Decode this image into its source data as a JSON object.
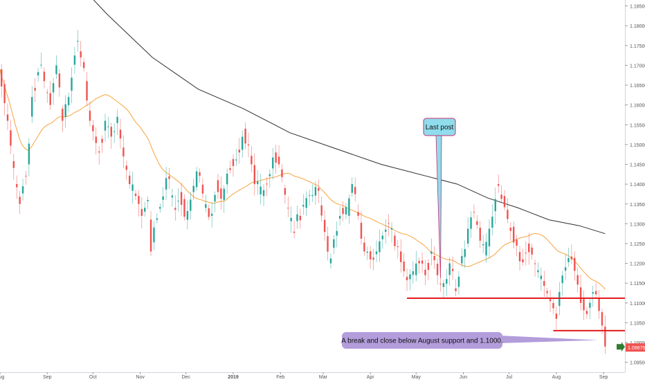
{
  "chart_data": {
    "type": "candlestick",
    "instrument_axis": "price",
    "ylim": [
      1.0925,
      1.1865
    ],
    "y_ticks": [
      "1.18500",
      "1.18000",
      "1.17500",
      "1.17000",
      "1.16500",
      "1.16000",
      "1.15500",
      "1.15000",
      "1.14500",
      "1.14000",
      "1.13500",
      "1.13000",
      "1.12500",
      "1.12000",
      "1.11500",
      "1.11000",
      "1.10500",
      "1.10000",
      "1.09500"
    ],
    "x_ticks": [
      {
        "label": "Aug",
        "day": 0
      },
      {
        "label": "Sep",
        "day": 31
      },
      {
        "label": "Oct",
        "day": 61
      },
      {
        "label": "Nov",
        "day": 92
      },
      {
        "label": "Dec",
        "day": 122
      },
      {
        "label": "2019",
        "day": 153
      },
      {
        "label": "Feb",
        "day": 184
      },
      {
        "label": "Mar",
        "day": 212
      },
      {
        "label": "Apr",
        "day": 243
      },
      {
        "label": "May",
        "day": 273
      },
      {
        "label": "Jun",
        "day": 304
      },
      {
        "label": "Jul",
        "day": 334
      },
      {
        "label": "Aug",
        "day": 365
      },
      {
        "label": "Sep",
        "day": 396
      }
    ],
    "x_range_days": [
      0,
      410
    ],
    "close_anchors": [
      [
        0,
        1.169
      ],
      [
        5,
        1.156
      ],
      [
        10,
        1.14
      ],
      [
        13,
        1.135
      ],
      [
        18,
        1.145
      ],
      [
        21,
        1.162
      ],
      [
        26,
        1.17
      ],
      [
        29,
        1.166
      ],
      [
        33,
        1.16
      ],
      [
        37,
        1.17
      ],
      [
        41,
        1.156
      ],
      [
        45,
        1.162
      ],
      [
        50,
        1.176
      ],
      [
        53,
        1.172
      ],
      [
        56,
        1.166
      ],
      [
        59,
        1.156
      ],
      [
        62,
        1.152
      ],
      [
        65,
        1.148
      ],
      [
        69,
        1.156
      ],
      [
        73,
        1.152
      ],
      [
        77,
        1.157
      ],
      [
        81,
        1.147
      ],
      [
        85,
        1.14
      ],
      [
        89,
        1.137
      ],
      [
        93,
        1.132
      ],
      [
        97,
        1.136
      ],
      [
        99,
        1.123
      ],
      [
        102,
        1.131
      ],
      [
        106,
        1.136
      ],
      [
        110,
        1.142
      ],
      [
        114,
        1.134
      ],
      [
        118,
        1.138
      ],
      [
        122,
        1.131
      ],
      [
        126,
        1.138
      ],
      [
        130,
        1.143
      ],
      [
        134,
        1.134
      ],
      [
        138,
        1.132
      ],
      [
        142,
        1.141
      ],
      [
        146,
        1.136
      ],
      [
        150,
        1.144
      ],
      [
        154,
        1.146
      ],
      [
        157,
        1.148
      ],
      [
        160,
        1.154
      ],
      [
        162,
        1.15
      ],
      [
        165,
        1.145
      ],
      [
        168,
        1.14
      ],
      [
        172,
        1.137
      ],
      [
        176,
        1.142
      ],
      [
        180,
        1.148
      ],
      [
        183,
        1.145
      ],
      [
        186,
        1.139
      ],
      [
        189,
        1.134
      ],
      [
        192,
        1.128
      ],
      [
        196,
        1.132
      ],
      [
        200,
        1.134
      ],
      [
        204,
        1.137
      ],
      [
        208,
        1.139
      ],
      [
        212,
        1.131
      ],
      [
        216,
        1.12
      ],
      [
        220,
        1.127
      ],
      [
        224,
        1.134
      ],
      [
        228,
        1.132
      ],
      [
        231,
        1.14
      ],
      [
        235,
        1.132
      ],
      [
        239,
        1.123
      ],
      [
        243,
        1.121
      ],
      [
        247,
        1.123
      ],
      [
        251,
        1.127
      ],
      [
        255,
        1.13
      ],
      [
        258,
        1.127
      ],
      [
        262,
        1.123
      ],
      [
        265,
        1.118
      ],
      [
        268,
        1.116
      ],
      [
        271,
        1.118
      ],
      [
        275,
        1.12
      ],
      [
        279,
        1.117
      ],
      [
        283,
        1.123
      ],
      [
        287,
        1.117
      ],
      [
        291,
        1.115
      ],
      [
        295,
        1.12
      ],
      [
        299,
        1.113
      ],
      [
        302,
        1.12
      ],
      [
        306,
        1.125
      ],
      [
        310,
        1.133
      ],
      [
        314,
        1.129
      ],
      [
        318,
        1.122
      ],
      [
        322,
        1.129
      ],
      [
        326,
        1.14
      ],
      [
        330,
        1.137
      ],
      [
        334,
        1.129
      ],
      [
        338,
        1.126
      ],
      [
        342,
        1.121
      ],
      [
        346,
        1.125
      ],
      [
        350,
        1.12
      ],
      [
        354,
        1.116
      ],
      [
        358,
        1.113
      ],
      [
        362,
        1.11
      ],
      [
        365,
        1.106
      ],
      [
        368,
        1.115
      ],
      [
        371,
        1.119
      ],
      [
        375,
        1.121
      ],
      [
        378,
        1.117
      ],
      [
        381,
        1.11
      ],
      [
        384,
        1.108
      ],
      [
        387,
        1.11
      ],
      [
        390,
        1.113
      ],
      [
        393,
        1.108
      ],
      [
        396,
        1.104
      ],
      [
        397,
        1.099
      ]
    ],
    "series": [
      {
        "color": "#f7a23c"
      },
      {
        "color": "#2d2d2d"
      }
    ],
    "candle_colors": {
      "up": "#26a69a",
      "down": "#ef5350"
    },
    "horizontal_levels": [
      {
        "price": 1.1112,
        "from_day": 267,
        "to_day": 410,
        "color": "#e41a1c"
      },
      {
        "price": 1.103,
        "from_day": 363,
        "to_day": 410,
        "color": "#e41a1c"
      }
    ],
    "current_price": {
      "label": "1.09875",
      "value": 1.09875,
      "color": "#ef5350"
    },
    "annotations": [
      {
        "text": "Last post",
        "box_color": "#8fdcec",
        "border_color": "#c9306f",
        "pointer_day": 289,
        "pointer_price": 1.1163
      },
      {
        "text": "A break and close below August support and 1.1000.",
        "box_color": "#b39ddb",
        "border_color": "#b39ddb",
        "pointer_day": 397,
        "pointer_price": 1.099
      }
    ],
    "grid": false,
    "legend": "none"
  }
}
